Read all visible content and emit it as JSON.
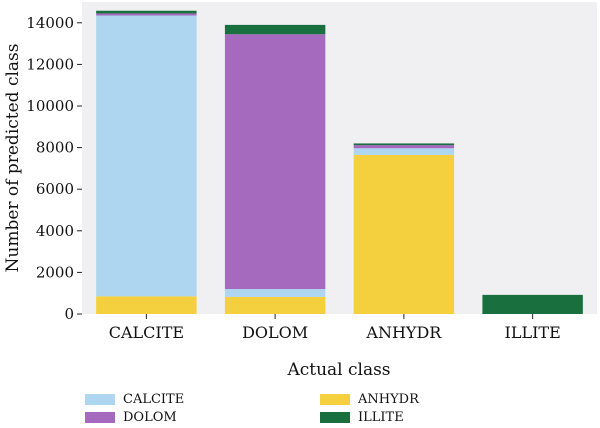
{
  "chart_data": {
    "type": "bar",
    "stacked": true,
    "categories": [
      "CALCITE",
      "DOLOM",
      "ANHYDR",
      "ILLITE"
    ],
    "xlabel": "Actual class",
    "ylabel": "Number of predicted class",
    "ylim": [
      0,
      15000
    ],
    "yticks": [
      0,
      2000,
      4000,
      6000,
      8000,
      10000,
      12000,
      14000
    ],
    "grid": false,
    "legend_position": "bottom",
    "series": [
      {
        "name": "ANHYDR",
        "color": "#f4d03f",
        "values": [
          850,
          820,
          7650,
          0
        ]
      },
      {
        "name": "CALCITE",
        "color": "#aed6f1",
        "values": [
          13500,
          380,
          320,
          0
        ]
      },
      {
        "name": "DOLOM",
        "color": "#a569bd",
        "values": [
          100,
          12250,
          150,
          0
        ]
      },
      {
        "name": "ILLITE",
        "color": "#196f3d",
        "values": [
          130,
          450,
          80,
          920
        ]
      }
    ],
    "legend": [
      {
        "name": "CALCITE",
        "color": "#aed6f1"
      },
      {
        "name": "ANHYDR",
        "color": "#f4d03f"
      },
      {
        "name": "DOLOM",
        "color": "#a569bd"
      },
      {
        "name": "ILLITE",
        "color": "#196f3d"
      }
    ],
    "plot_background": "#f0f0f3"
  }
}
